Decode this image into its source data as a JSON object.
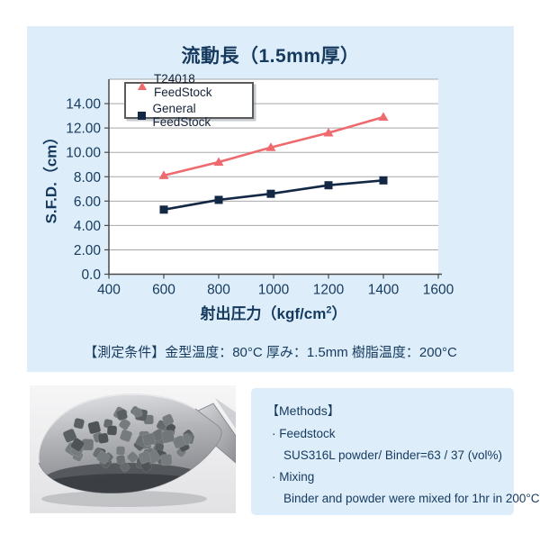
{
  "panel": {
    "title": "流動長（1.5mm厚）",
    "conditions": "【測定条件】金型温度：80°C  厚み：1.5mm  樹脂温度：200°C",
    "background": "#ddeefa",
    "title_color": "#16395e"
  },
  "chart_data": {
    "type": "line",
    "title": "流動長（1.5mm厚）",
    "xlabel": "射出圧力（kgf/cm²）",
    "xlabel_base": "射出圧力（kgf/cm",
    "xlabel_sup": "2",
    "xlabel_close": "）",
    "ylabel": "S.F.D.（cm）",
    "x": [
      600,
      800,
      990,
      1200,
      1400
    ],
    "series": [
      {
        "name": "T24018 FeedStock",
        "values": [
          8.1,
          9.2,
          10.4,
          11.6,
          12.9
        ],
        "color": "#ee6a6e",
        "marker": "triangle"
      },
      {
        "name": "General FeedStock",
        "values": [
          5.3,
          6.1,
          6.6,
          7.3,
          7.7
        ],
        "color": "#132844",
        "marker": "square"
      }
    ],
    "xlim": [
      400,
      1600
    ],
    "ylim": [
      0,
      16
    ],
    "xticks": [
      400,
      600,
      800,
      1000,
      1200,
      1400,
      1600
    ],
    "yticks": [
      0,
      2,
      4,
      6,
      8,
      10,
      12,
      14
    ],
    "ytick_labels": [
      "0.0",
      "2.00",
      "4.00",
      "6.00",
      "8.00",
      "10.00",
      "12.00",
      "14.00"
    ],
    "grid": true,
    "gridline_color": "#a8a8a8",
    "axis_color": "#4a4a4a",
    "tick_label_color": "#16395e",
    "plot_background": "#ffffff",
    "legend_position": "top-left-inside"
  },
  "methods": {
    "heading": "【Methods】",
    "items": [
      {
        "text": "· Feedstock"
      },
      {
        "text": "SUS316L powder/ Binder=63 / 37 (vol%)"
      },
      {
        "text": "· Mixing"
      },
      {
        "text": "Binder and powder were mixed for 1hr in 200°C"
      }
    ],
    "background": "#ddeefa"
  },
  "photo": {
    "description": "Metal hand scoop filled with gray SUS316L feedstock pellets"
  }
}
